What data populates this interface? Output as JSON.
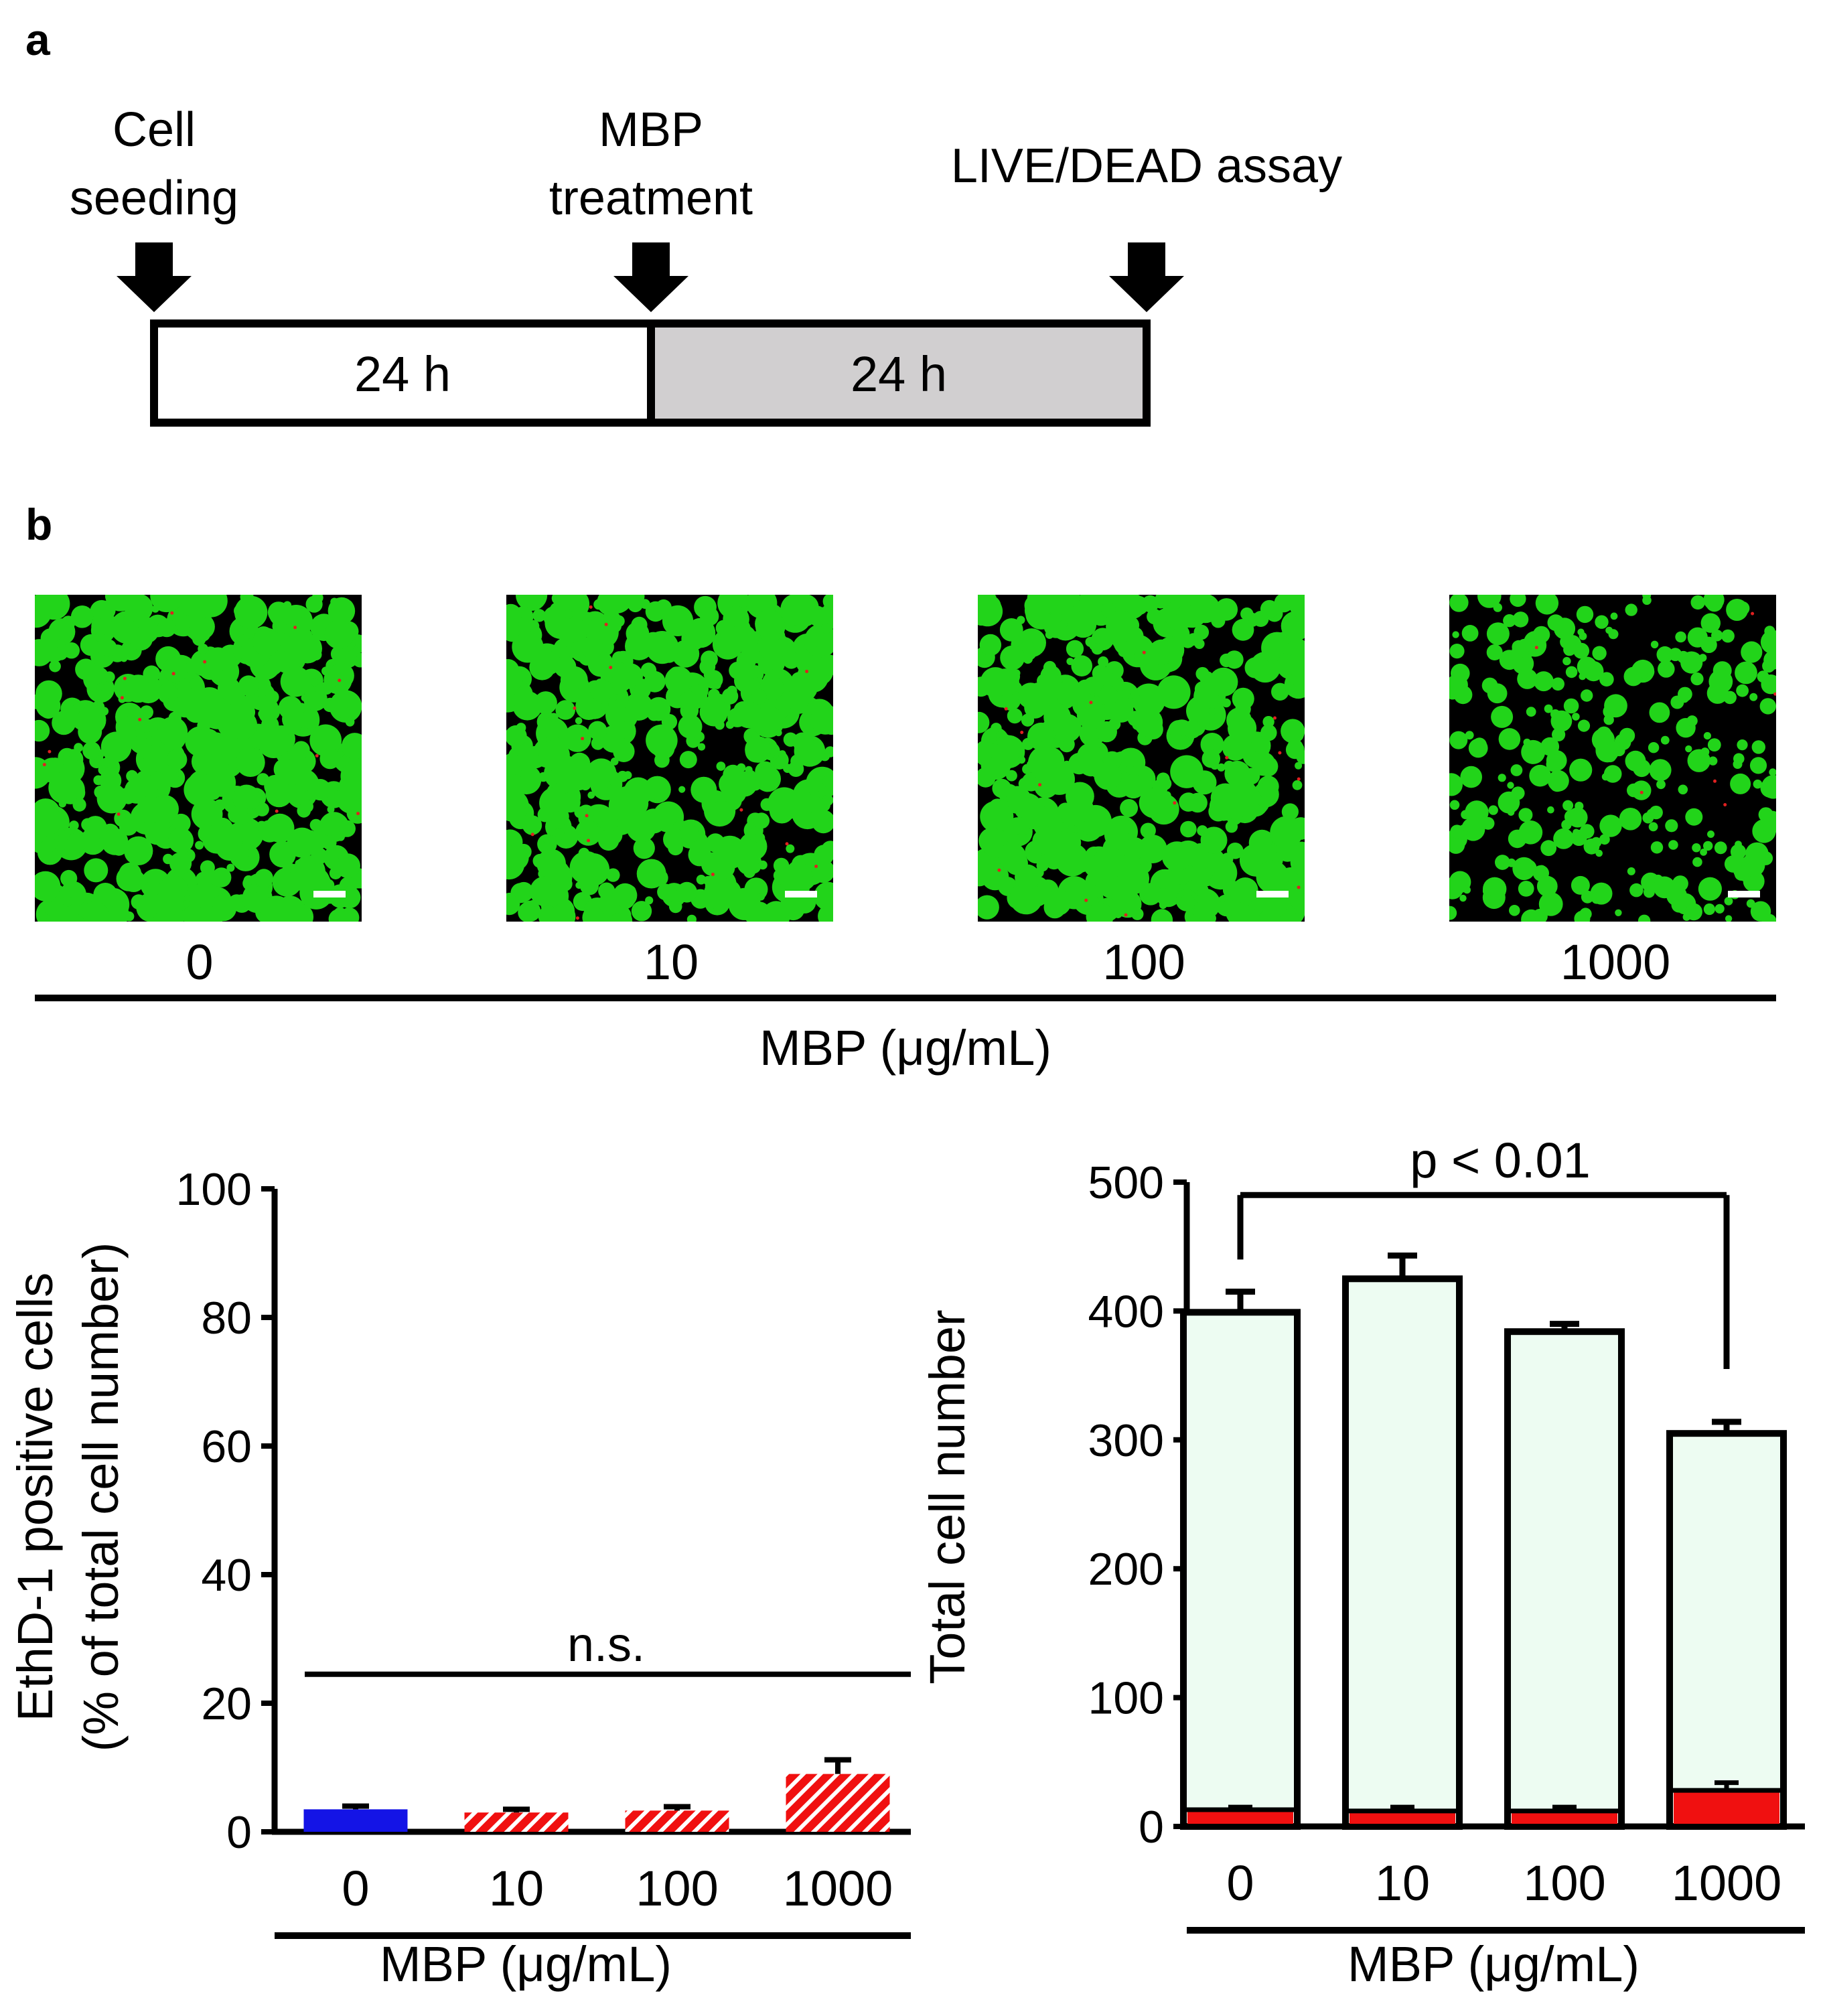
{
  "panel_labels": {
    "a": "a",
    "b": "b"
  },
  "timeline": {
    "steps": [
      {
        "lines": [
          "Cell",
          "seeding"
        ]
      },
      {
        "lines": [
          "MBP",
          "treatment"
        ]
      },
      {
        "lines": [
          "LIVE/DEAD assay"
        ]
      }
    ],
    "periods": [
      {
        "label": "24 h",
        "fill": "#ffffff"
      },
      {
        "label": "24 h",
        "fill": "#d1cfd0"
      }
    ]
  },
  "micrographs": {
    "concentrations": [
      "0",
      "10",
      "100",
      "1000"
    ],
    "xlabel": "MBP (μg/mL)",
    "live_color": "#22d41a",
    "dead_color": "#e02020",
    "background": "#000000",
    "density": [
      1.0,
      0.95,
      0.9,
      0.55
    ]
  },
  "chart_data": [
    {
      "type": "bar",
      "title": "",
      "categories": [
        "0",
        "10",
        "100",
        "1000"
      ],
      "series": [
        {
          "name": "EthD-1 positive cells",
          "values": [
            3.5,
            3.0,
            3.3,
            9.0
          ],
          "errors": [
            0.5,
            0.5,
            0.6,
            2.2
          ]
        }
      ],
      "colors": [
        "#1414e6",
        "#f01010",
        "#f01010",
        "#f01010"
      ],
      "hatched": [
        false,
        true,
        true,
        true
      ],
      "xlabel": "MBP (μg/mL)",
      "ylabel_lines": [
        "EthD-1 positive cells",
        "(% of total cell  number)"
      ],
      "ylim": [
        0,
        100
      ],
      "yticks": [
        "0",
        "20",
        "40",
        "60",
        "80",
        "100"
      ],
      "annotation": {
        "text": "n.s.",
        "y": 24.5
      }
    },
    {
      "type": "bar",
      "stacked": true,
      "title": "",
      "categories": [
        "0",
        "10",
        "100",
        "1000"
      ],
      "series": [
        {
          "name": "Total cell number",
          "values": [
            399,
            425,
            384,
            305
          ],
          "errors": [
            16,
            18,
            6,
            9
          ],
          "color": "#edfcf2"
        },
        {
          "name": "EthD-1 positive cells",
          "values": [
            13,
            12,
            12,
            28
          ],
          "errors": [
            2,
            3,
            3,
            6
          ],
          "color": "#f01010"
        }
      ],
      "xlabel": "MBP (μg/mL)",
      "ylabel": "Total cell  number",
      "ylim": [
        0,
        500
      ],
      "yticks": [
        "0",
        "100",
        "200",
        "300",
        "400",
        "500"
      ],
      "annotation": {
        "text": "p < 0.01",
        "from": 0,
        "to": 3,
        "bracket_y": 490,
        "left_end": 440,
        "right_end": 355
      }
    }
  ]
}
